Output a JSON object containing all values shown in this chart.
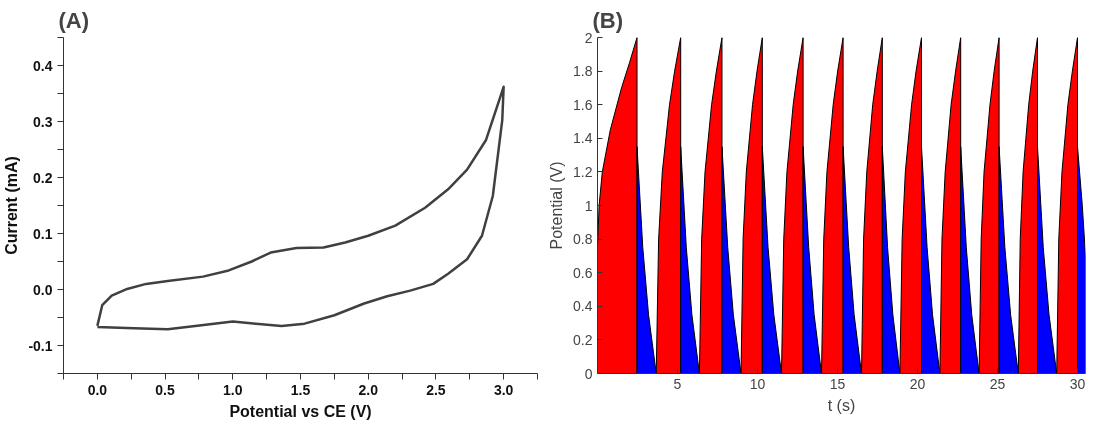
{
  "chart_data": [
    {
      "type": "line",
      "title": "(A)",
      "xlabel": "Potential vs CE (V)",
      "ylabel": "Current (mA)",
      "xlim": [
        -0.25,
        3.25
      ],
      "ylim": [
        -0.15,
        0.45
      ],
      "xticks": [
        {
          "value": -0.25,
          "label": null
        },
        {
          "value": 0,
          "label": "0.0"
        },
        {
          "value": 0.25,
          "label": null
        },
        {
          "value": 0.5,
          "label": "0.5"
        },
        {
          "value": 0.75,
          "label": null
        },
        {
          "value": 1,
          "label": "1.0"
        },
        {
          "value": 1.25,
          "label": null
        },
        {
          "value": 1.5,
          "label": "1.5"
        },
        {
          "value": 1.75,
          "label": null
        },
        {
          "value": 2,
          "label": "2.0"
        },
        {
          "value": 2.25,
          "label": null
        },
        {
          "value": 2.5,
          "label": "2.5"
        },
        {
          "value": 2.75,
          "label": null
        },
        {
          "value": 3,
          "label": "3.0"
        },
        {
          "value": 3.25,
          "label": null
        }
      ],
      "yticks": [
        {
          "value": -0.15,
          "label": null
        },
        {
          "value": -0.1,
          "label": "-0.1"
        },
        {
          "value": -0.05,
          "label": null
        },
        {
          "value": 0,
          "label": "0.0"
        },
        {
          "value": 0.05,
          "label": null
        },
        {
          "value": 0.1,
          "label": "0.1"
        },
        {
          "value": 0.15,
          "label": null
        },
        {
          "value": 0.2,
          "label": "0.2"
        },
        {
          "value": 0.25,
          "label": null
        },
        {
          "value": 0.3,
          "label": "0.3"
        },
        {
          "value": 0.35,
          "label": null
        },
        {
          "value": 0.4,
          "label": "0.4"
        },
        {
          "value": 0.45,
          "label": null
        }
      ],
      "series": [
        {
          "color": "#404040",
          "x": [
            0,
            0.036,
            0.106,
            0.22,
            0.36,
            0.52,
            0.78,
            0.97,
            1.14,
            1.28,
            1.47,
            1.67,
            1.83,
            2.0,
            2.2,
            2.42,
            2.59,
            2.73,
            2.87,
            3.0,
            2.99,
            2.92,
            2.84,
            2.73,
            2.59,
            2.48,
            2.31,
            2.14,
            1.97,
            1.75,
            1.53,
            1.36,
            1.17,
            1.0,
            0.8,
            0.52,
            0.27,
            0
          ],
          "values": [
            -0.065,
            -0.028,
            -0.011,
            0.001,
            0.01,
            0.015,
            0.023,
            0.034,
            0.05,
            0.066,
            0.074,
            0.075,
            0.084,
            0.096,
            0.114,
            0.146,
            0.179,
            0.214,
            0.267,
            0.362,
            0.303,
            0.167,
            0.096,
            0.054,
            0.028,
            0.01,
            -0.002,
            -0.012,
            -0.025,
            -0.046,
            -0.061,
            -0.065,
            -0.061,
            -0.057,
            -0.063,
            -0.071,
            -0.069,
            -0.067
          ]
        }
      ]
    },
    {
      "type": "area",
      "title": "(B)",
      "xlabel": "t (s)",
      "ylabel": "Potential (V)",
      "xlim": [
        0,
        30.5
      ],
      "ylim": [
        0,
        2
      ],
      "xticks": [
        5,
        10,
        15,
        20,
        25,
        30
      ],
      "yticks": [
        0,
        0.2,
        0.4,
        0.6,
        0.8,
        1,
        1.2,
        1.4,
        1.6,
        1.8,
        2
      ],
      "series": [
        {
          "color": "#ff0000",
          "x": [
            0,
            0.1,
            0.3,
            0.8,
            1.5,
            2.0,
            2.47,
            null,
            3.67,
            3.82,
            4.05,
            4.5,
            4.82,
            5.2,
            null,
            6.37,
            6.51,
            6.72,
            7.13,
            7.43,
            7.78,
            null,
            8.97,
            9.1,
            9.3,
            9.69,
            9.97,
            10.3,
            null,
            11.5,
            11.64,
            11.84,
            12.23,
            12.51,
            12.85,
            null,
            14.0,
            14.14,
            14.34,
            14.73,
            15.01,
            15.35,
            null,
            16.5,
            16.63,
            16.83,
            17.2,
            17.48,
            17.8,
            null,
            18.9,
            19.04,
            19.24,
            19.63,
            19.91,
            20.25,
            null,
            21.4,
            21.53,
            21.73,
            22.1,
            22.38,
            22.7,
            null,
            23.85,
            23.98,
            24.16,
            24.53,
            24.79,
            25.1,
            null,
            26.3,
            26.42,
            26.6,
            26.95,
            27.2,
            27.5,
            null,
            28.7,
            28.83,
            29.03,
            29.4,
            29.68,
            30.0
          ],
          "values": [
            0.75,
            1.0,
            1.2,
            1.45,
            1.7,
            1.85,
            2.0,
            null,
            0,
            0.8,
            1.2,
            1.6,
            1.8,
            2.0,
            null,
            0,
            0.8,
            1.2,
            1.6,
            1.8,
            2.0,
            null,
            0,
            0.8,
            1.2,
            1.6,
            1.8,
            2.0,
            null,
            0,
            0.8,
            1.2,
            1.6,
            1.8,
            2.0,
            null,
            0,
            0.8,
            1.2,
            1.6,
            1.8,
            2.0,
            null,
            0,
            0.8,
            1.2,
            1.6,
            1.8,
            2.0,
            null,
            0,
            0.8,
            1.2,
            1.6,
            1.8,
            2.0,
            null,
            0,
            0.8,
            1.2,
            1.6,
            1.8,
            2.0,
            null,
            0,
            0.8,
            1.2,
            1.6,
            1.8,
            2.0,
            null,
            0,
            0.8,
            1.2,
            1.6,
            1.8,
            2.0,
            null,
            0,
            0.8,
            1.2,
            1.6,
            1.8,
            2.0
          ]
        },
        {
          "color": "#0000ff",
          "x": [
            2.47,
            2.83,
            3.19,
            3.67,
            null,
            5.2,
            5.55,
            5.9,
            6.37,
            null,
            7.78,
            8.14,
            8.49,
            8.97,
            null,
            10.3,
            10.66,
            11.02,
            11.5,
            null,
            12.85,
            13.2,
            13.54,
            14.0,
            null,
            15.35,
            15.7,
            16.04,
            16.5,
            null,
            17.8,
            18.13,
            18.46,
            18.9,
            null,
            20.25,
            20.6,
            20.94,
            21.4,
            null,
            22.7,
            23.05,
            23.39,
            23.85,
            null,
            25.1,
            25.46,
            25.82,
            26.3,
            null,
            27.5,
            27.86,
            28.22,
            28.7,
            null,
            30.0,
            30.3,
            30.5
          ],
          "values": [
            1.35,
            0.75,
            0.35,
            0,
            null,
            1.35,
            0.75,
            0.35,
            0,
            null,
            1.35,
            0.75,
            0.35,
            0,
            null,
            1.35,
            0.75,
            0.35,
            0,
            null,
            1.35,
            0.75,
            0.35,
            0,
            null,
            1.35,
            0.75,
            0.35,
            0,
            null,
            1.35,
            0.75,
            0.35,
            0,
            null,
            1.35,
            0.75,
            0.35,
            0,
            null,
            1.35,
            0.75,
            0.35,
            0,
            null,
            1.35,
            0.75,
            0.35,
            0,
            null,
            1.35,
            0.75,
            0.35,
            0,
            null,
            1.35,
            1.0,
            0.7
          ]
        }
      ]
    }
  ]
}
